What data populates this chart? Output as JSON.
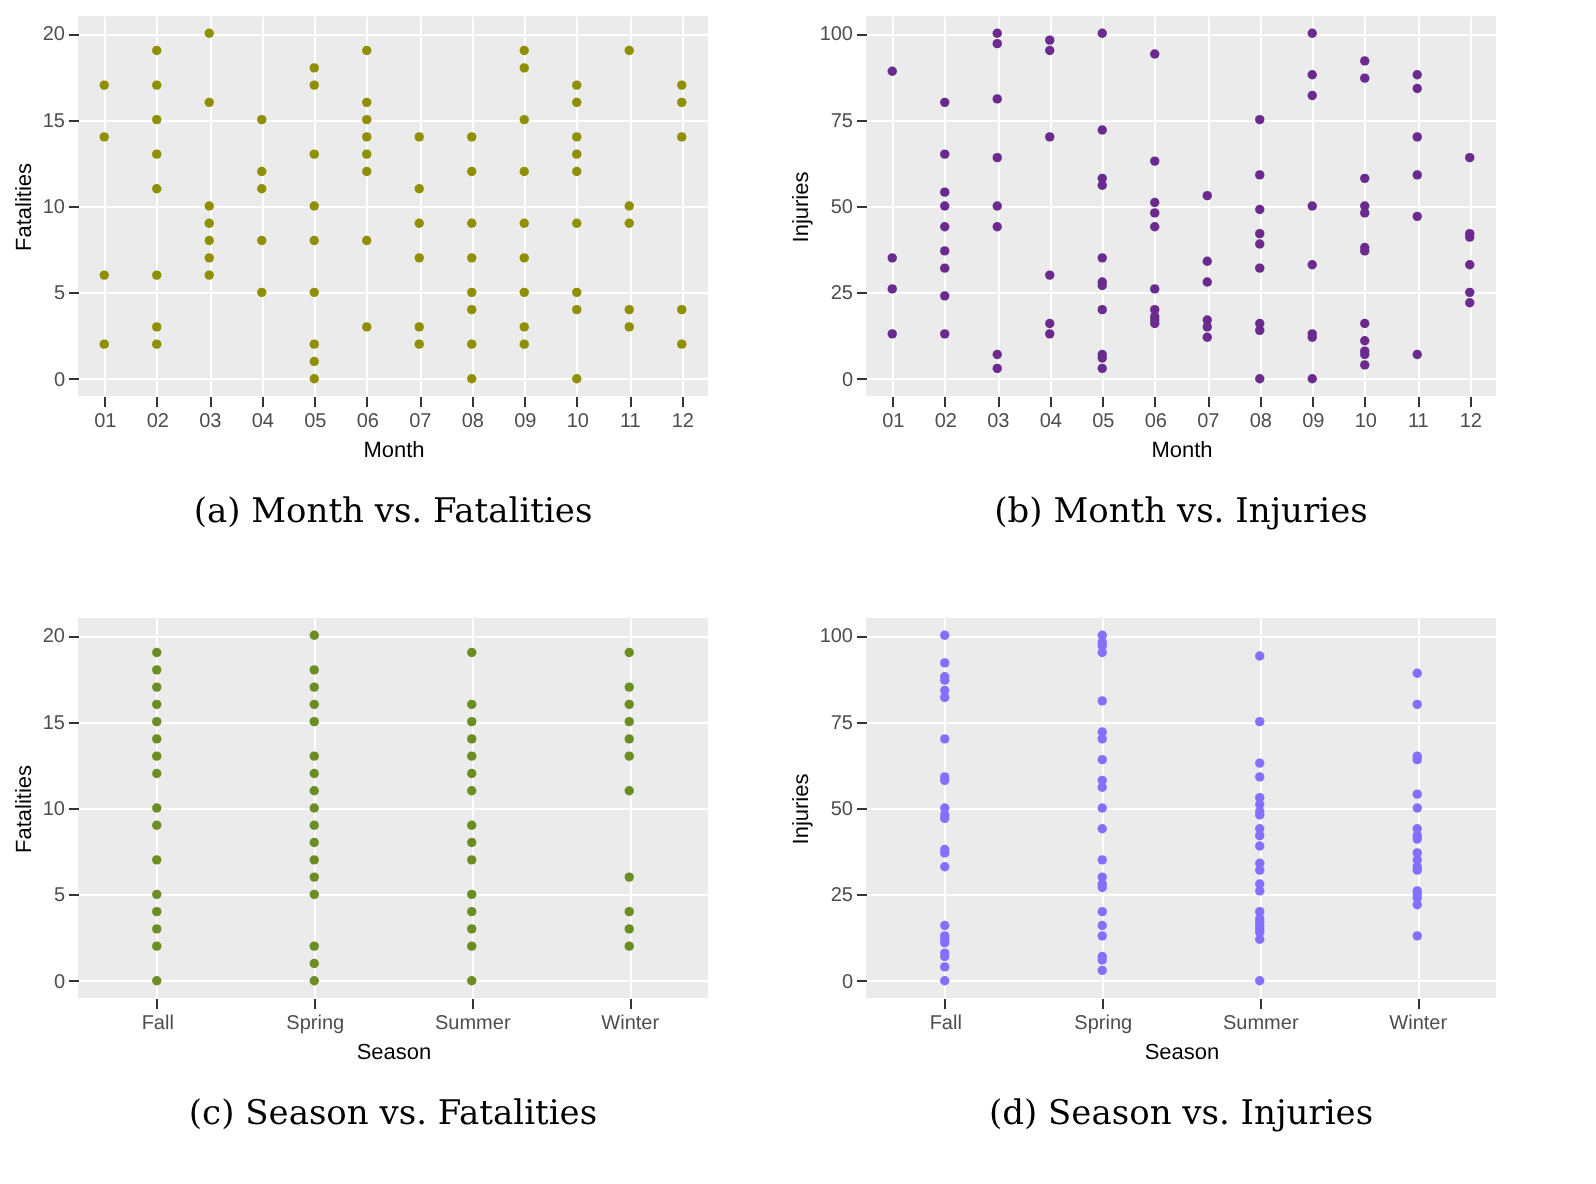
{
  "chart_data": [
    {
      "type": "scatter",
      "title": "(a) Month vs. Fatalities",
      "xlabel": "Month",
      "ylabel": "Fatalities",
      "categories": [
        "01",
        "02",
        "03",
        "04",
        "05",
        "06",
        "07",
        "08",
        "09",
        "10",
        "11",
        "12"
      ],
      "ylim": [
        -1,
        21
      ],
      "yticks": [
        0,
        5,
        10,
        15,
        20
      ],
      "grid": true,
      "series": [
        {
          "color": "#8f8f00",
          "x": [
            "01",
            "01",
            "01",
            "01",
            "02",
            "02",
            "02",
            "02",
            "02",
            "02",
            "02",
            "02",
            "03",
            "03",
            "03",
            "03",
            "03",
            "03",
            "03",
            "04",
            "04",
            "04",
            "04",
            "04",
            "05",
            "05",
            "05",
            "05",
            "05",
            "05",
            "05",
            "05",
            "05",
            "06",
            "06",
            "06",
            "06",
            "06",
            "06",
            "06",
            "06",
            "07",
            "07",
            "07",
            "07",
            "07",
            "07",
            "08",
            "08",
            "08",
            "08",
            "08",
            "08",
            "08",
            "08",
            "09",
            "09",
            "09",
            "09",
            "09",
            "09",
            "09",
            "09",
            "09",
            "10",
            "10",
            "10",
            "10",
            "10",
            "10",
            "10",
            "10",
            "10",
            "11",
            "11",
            "11",
            "11",
            "11",
            "12",
            "12",
            "12",
            "12",
            "12"
          ],
          "values": [
            17,
            14,
            6,
            2,
            19,
            17,
            15,
            13,
            11,
            6,
            3,
            2,
            20,
            16,
            10,
            9,
            8,
            7,
            6,
            15,
            12,
            11,
            8,
            5,
            18,
            17,
            13,
            10,
            8,
            5,
            2,
            1,
            0,
            19,
            16,
            15,
            14,
            13,
            12,
            8,
            3,
            14,
            11,
            9,
            7,
            3,
            2,
            14,
            12,
            9,
            7,
            5,
            4,
            2,
            0,
            19,
            18,
            15,
            12,
            9,
            7,
            5,
            3,
            2,
            17,
            16,
            14,
            13,
            12,
            9,
            5,
            4,
            0,
            19,
            10,
            9,
            4,
            3,
            17,
            16,
            14,
            4,
            2
          ]
        }
      ]
    },
    {
      "type": "scatter",
      "title": "(b) Month vs. Injuries",
      "xlabel": "Month",
      "ylabel": "Injuries",
      "categories": [
        "01",
        "02",
        "03",
        "04",
        "05",
        "06",
        "07",
        "08",
        "09",
        "10",
        "11",
        "12"
      ],
      "ylim": [
        -5,
        105
      ],
      "yticks": [
        0,
        25,
        50,
        75,
        100
      ],
      "grid": true,
      "series": [
        {
          "color": "#6a2a8e",
          "x": [
            "01",
            "01",
            "01",
            "01",
            "02",
            "02",
            "02",
            "02",
            "02",
            "02",
            "02",
            "02",
            "02",
            "03",
            "03",
            "03",
            "03",
            "03",
            "03",
            "03",
            "03",
            "04",
            "04",
            "04",
            "04",
            "04",
            "04",
            "05",
            "05",
            "05",
            "05",
            "05",
            "05",
            "05",
            "05",
            "05",
            "05",
            "05",
            "06",
            "06",
            "06",
            "06",
            "06",
            "06",
            "06",
            "06",
            "06",
            "06",
            "07",
            "07",
            "07",
            "07",
            "07",
            "07",
            "08",
            "08",
            "08",
            "08",
            "08",
            "08",
            "08",
            "08",
            "08",
            "09",
            "09",
            "09",
            "09",
            "09",
            "09",
            "09",
            "09",
            "10",
            "10",
            "10",
            "10",
            "10",
            "10",
            "10",
            "10",
            "10",
            "10",
            "10",
            "10",
            "11",
            "11",
            "11",
            "11",
            "11",
            "11",
            "12",
            "12",
            "12",
            "12",
            "12",
            "12"
          ],
          "values": [
            89,
            35,
            26,
            13,
            80,
            65,
            54,
            50,
            44,
            37,
            32,
            24,
            13,
            100,
            97,
            81,
            64,
            50,
            44,
            7,
            3,
            98,
            95,
            70,
            30,
            16,
            13,
            100,
            72,
            58,
            56,
            35,
            28,
            27,
            20,
            7,
            6,
            3,
            94,
            63,
            51,
            48,
            44,
            26,
            20,
            18,
            17,
            16,
            53,
            34,
            28,
            17,
            15,
            12,
            75,
            59,
            49,
            42,
            39,
            32,
            16,
            14,
            0,
            100,
            88,
            82,
            50,
            33,
            13,
            12,
            0,
            92,
            87,
            58,
            50,
            48,
            38,
            37,
            16,
            11,
            8,
            7,
            4,
            88,
            84,
            70,
            59,
            47,
            7,
            64,
            42,
            41,
            33,
            25,
            22
          ]
        }
      ]
    },
    {
      "type": "scatter",
      "title": "(c) Season vs. Fatalities",
      "xlabel": "Season",
      "ylabel": "Fatalities",
      "categories": [
        "Fall",
        "Spring",
        "Summer",
        "Winter"
      ],
      "ylim": [
        -1,
        21
      ],
      "yticks": [
        0,
        5,
        10,
        15,
        20
      ],
      "grid": true,
      "series": [
        {
          "color": "#6b8e23",
          "x": [
            "Fall",
            "Fall",
            "Fall",
            "Fall",
            "Fall",
            "Fall",
            "Fall",
            "Fall",
            "Fall",
            "Fall",
            "Fall",
            "Fall",
            "Fall",
            "Fall",
            "Fall",
            "Fall",
            "Spring",
            "Spring",
            "Spring",
            "Spring",
            "Spring",
            "Spring",
            "Spring",
            "Spring",
            "Spring",
            "Spring",
            "Spring",
            "Spring",
            "Spring",
            "Spring",
            "Spring",
            "Spring",
            "Spring",
            "Summer",
            "Summer",
            "Summer",
            "Summer",
            "Summer",
            "Summer",
            "Summer",
            "Summer",
            "Summer",
            "Summer",
            "Summer",
            "Summer",
            "Summer",
            "Summer",
            "Summer",
            "Winter",
            "Winter",
            "Winter",
            "Winter",
            "Winter",
            "Winter",
            "Winter",
            "Winter",
            "Winter",
            "Winter",
            "Winter"
          ],
          "values": [
            19,
            18,
            17,
            16,
            15,
            14,
            13,
            12,
            10,
            9,
            7,
            5,
            4,
            3,
            2,
            0,
            20,
            18,
            17,
            16,
            15,
            13,
            12,
            11,
            10,
            9,
            8,
            7,
            6,
            5,
            2,
            1,
            0,
            19,
            16,
            15,
            14,
            13,
            12,
            11,
            9,
            8,
            7,
            5,
            4,
            3,
            2,
            0,
            19,
            17,
            16,
            15,
            14,
            13,
            11,
            6,
            4,
            3,
            2
          ]
        }
      ]
    },
    {
      "type": "scatter",
      "title": "(d) Season vs. Injuries",
      "xlabel": "Season",
      "ylabel": "Injuries",
      "categories": [
        "Fall",
        "Spring",
        "Summer",
        "Winter"
      ],
      "ylim": [
        -5,
        105
      ],
      "yticks": [
        0,
        25,
        50,
        75,
        100
      ],
      "grid": true,
      "series": [
        {
          "color": "#8470ff",
          "x": [
            "Fall",
            "Fall",
            "Fall",
            "Fall",
            "Fall",
            "Fall",
            "Fall",
            "Fall",
            "Fall",
            "Fall",
            "Fall",
            "Fall",
            "Fall",
            "Fall",
            "Fall",
            "Fall",
            "Fall",
            "Fall",
            "Fall",
            "Fall",
            "Fall",
            "Fall",
            "Fall",
            "Spring",
            "Spring",
            "Spring",
            "Spring",
            "Spring",
            "Spring",
            "Spring",
            "Spring",
            "Spring",
            "Spring",
            "Spring",
            "Spring",
            "Spring",
            "Spring",
            "Spring",
            "Spring",
            "Spring",
            "Spring",
            "Spring",
            "Spring",
            "Spring",
            "Spring",
            "Summer",
            "Summer",
            "Summer",
            "Summer",
            "Summer",
            "Summer",
            "Summer",
            "Summer",
            "Summer",
            "Summer",
            "Summer",
            "Summer",
            "Summer",
            "Summer",
            "Summer",
            "Summer",
            "Summer",
            "Summer",
            "Summer",
            "Summer",
            "Summer",
            "Summer",
            "Summer",
            "Winter",
            "Winter",
            "Winter",
            "Winter",
            "Winter",
            "Winter",
            "Winter",
            "Winter",
            "Winter",
            "Winter",
            "Winter",
            "Winter",
            "Winter",
            "Winter",
            "Winter",
            "Winter",
            "Winter",
            "Winter"
          ],
          "values": [
            100,
            92,
            88,
            87,
            84,
            82,
            70,
            59,
            58,
            50,
            48,
            47,
            38,
            37,
            33,
            16,
            13,
            12,
            11,
            8,
            7,
            4,
            0,
            100,
            98,
            97,
            95,
            81,
            72,
            70,
            64,
            58,
            56,
            50,
            44,
            35,
            30,
            28,
            27,
            20,
            16,
            13,
            7,
            6,
            3,
            94,
            75,
            63,
            59,
            53,
            51,
            49,
            48,
            44,
            42,
            39,
            34,
            32,
            28,
            26,
            20,
            18,
            17,
            16,
            15,
            14,
            12,
            0,
            89,
            80,
            65,
            64,
            54,
            50,
            44,
            42,
            41,
            37,
            35,
            33,
            32,
            26,
            25,
            24,
            22,
            13
          ]
        }
      ]
    }
  ]
}
